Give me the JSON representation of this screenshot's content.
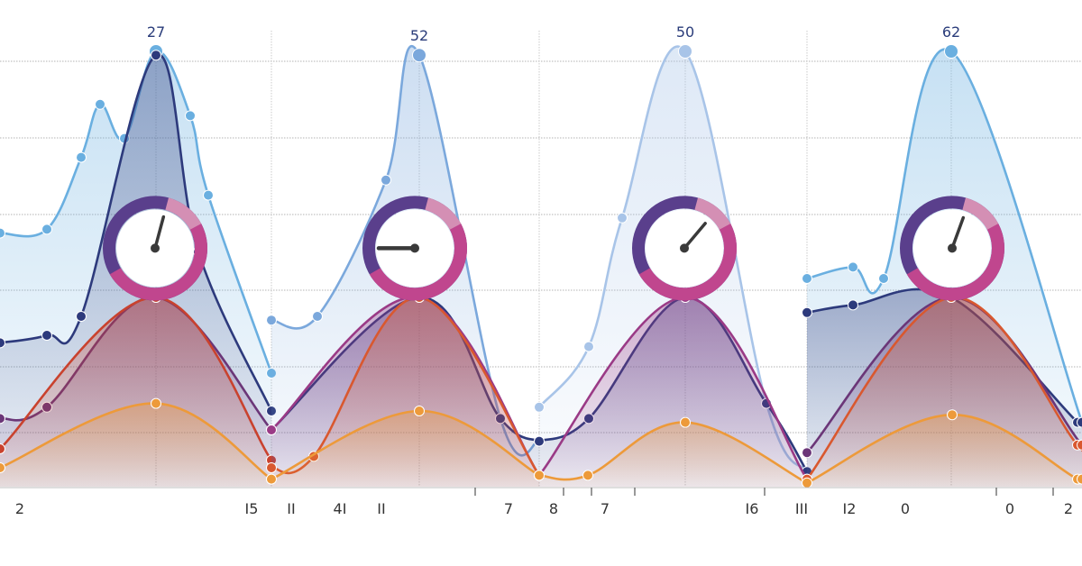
{
  "chart_data": {
    "type": "area",
    "title": "",
    "xlabel": "",
    "ylabel": "",
    "grid": true,
    "legend": "none",
    "panels": [
      {
        "peak_label": "27",
        "series": [
          {
            "color": "#6aafe0",
            "x": [
              0,
              52,
              90,
              111,
              138,
              173,
              211,
              231,
              301
            ],
            "y": [
              33.5,
              34,
              43.5,
              50.5,
              46,
              57.5,
              49,
              38.5,
              15
            ]
          },
          {
            "color": "#2d3a7c",
            "x": [
              0,
              52,
              90,
              173,
              220,
              301
            ],
            "y": [
              19,
              20,
              22.5,
              57,
              31,
              10
            ]
          },
          {
            "color": "#6b3678",
            "x": [
              0,
              52,
              173,
              301
            ],
            "y": [
              9,
              10.5,
              25,
              7.5
            ]
          },
          {
            "color": "#c9422e",
            "x": [
              0,
              173,
              301
            ],
            "y": [
              5,
              25,
              3.5
            ]
          },
          {
            "color": "#ed9a3a",
            "x": [
              0,
              173,
              301
            ],
            "y": [
              2.5,
              11,
              1
            ]
          }
        ]
      },
      {
        "peak_label": "52",
        "series": [
          {
            "color": "#7ba8dc",
            "x": [
              301,
              352,
              428,
              465,
              555,
              598
            ],
            "y": [
              22,
              22.5,
              40.5,
              57,
              9,
              6
            ]
          },
          {
            "color": "#2d3a7c",
            "x": [
              301,
              465,
              555,
              598
            ],
            "y": [
              7.5,
              25,
              9,
              6
            ]
          },
          {
            "color": "#9a3a86",
            "x": [
              301,
              465,
              598
            ],
            "y": [
              7.5,
              25,
              1.5
            ]
          },
          {
            "color": "#d9582f",
            "x": [
              301,
              348,
              465,
              598
            ],
            "y": [
              2.5,
              4,
              25,
              1.5
            ]
          },
          {
            "color": "#ed9a3a",
            "x": [
              301,
              465,
              598
            ],
            "y": [
              1,
              10,
              1.5
            ]
          }
        ]
      },
      {
        "peak_label": "50",
        "series": [
          {
            "color": "#a8c4e8",
            "x": [
              598,
              653,
              690,
              760,
              850,
              895
            ],
            "y": [
              10.5,
              18.5,
              35.5,
              57.5,
              11,
              2
            ]
          },
          {
            "color": "#2d3a7c",
            "x": [
              598,
              653,
              760,
              850,
              895
            ],
            "y": [
              6,
              9,
              25,
              11,
              2
            ]
          },
          {
            "color": "#9a3a86",
            "x": [
              598,
              760,
              895
            ],
            "y": [
              1.5,
              25,
              1
            ]
          },
          {
            "color": "#ed9a3a",
            "x": [
              598,
              652,
              760,
              895
            ],
            "y": [
              1.5,
              1.5,
              8.5,
              0.5
            ]
          }
        ]
      },
      {
        "peak_label": "62",
        "series": [
          {
            "color": "#6aafe0",
            "x": [
              895,
              946,
              980,
              1055,
              1200
            ],
            "y": [
              27.5,
              29,
              27.5,
              57.5,
              8.5
            ]
          },
          {
            "color": "#2d3a7c",
            "x": [
              895,
              946,
              1055,
              1195,
              1200
            ],
            "y": [
              23,
              24,
              25,
              8.5,
              8.5
            ]
          },
          {
            "color": "#6b3678",
            "x": [
              895,
              1055,
              1200
            ],
            "y": [
              4.5,
              25,
              5.5
            ]
          },
          {
            "color": "#d9582f",
            "x": [
              895,
              1055,
              1195,
              1200
            ],
            "y": [
              1,
              25,
              5.5,
              5.5
            ]
          },
          {
            "color": "#ed9a3a",
            "x": [
              895,
              1056,
              1195,
              1200
            ],
            "y": [
              0.5,
              9.5,
              1,
              1
            ]
          }
        ]
      }
    ],
    "gauges": [
      {
        "x": 172,
        "y": 31.5,
        "hand_deg": 15,
        "ring_color": "#5a3f8c",
        "accent_color": "#c0468e"
      },
      {
        "x": 460,
        "y": 31.5,
        "hand_deg": -90,
        "ring_color": "#5a3f8c",
        "accent_color": "#c0468e"
      },
      {
        "x": 759,
        "y": 31.5,
        "hand_deg": 40,
        "ring_color": "#5a3f8c",
        "accent_color": "#c0468e"
      },
      {
        "x": 1056,
        "y": 31.5,
        "hand_deg": 20,
        "ring_color": "#5a3f8c",
        "accent_color": "#c0468e"
      }
    ],
    "x_tick_labels": [
      {
        "x": 22,
        "label": "2"
      },
      {
        "x": 279,
        "label": "I5"
      },
      {
        "x": 323,
        "label": "II"
      },
      {
        "x": 377,
        "label": "4I"
      },
      {
        "x": 423,
        "label": "II"
      },
      {
        "x": 564,
        "label": "7"
      },
      {
        "x": 614,
        "label": "8"
      },
      {
        "x": 671,
        "label": "7"
      },
      {
        "x": 834,
        "label": "I6"
      },
      {
        "x": 889,
        "label": "III"
      },
      {
        "x": 942,
        "label": "I2"
      },
      {
        "x": 1004,
        "label": "0"
      },
      {
        "x": 1120,
        "label": "0"
      },
      {
        "x": 1185,
        "label": "2"
      }
    ],
    "x_tick_marks": [
      527,
      625,
      656,
      704,
      848,
      1105,
      1168
    ],
    "colors": {
      "blue": "#6aafe0",
      "navy": "#2d3a7c",
      "purple": "#6b3678",
      "red": "#c9422e",
      "orange": "#ed9a3a",
      "magenta": "#c0468e"
    }
  }
}
